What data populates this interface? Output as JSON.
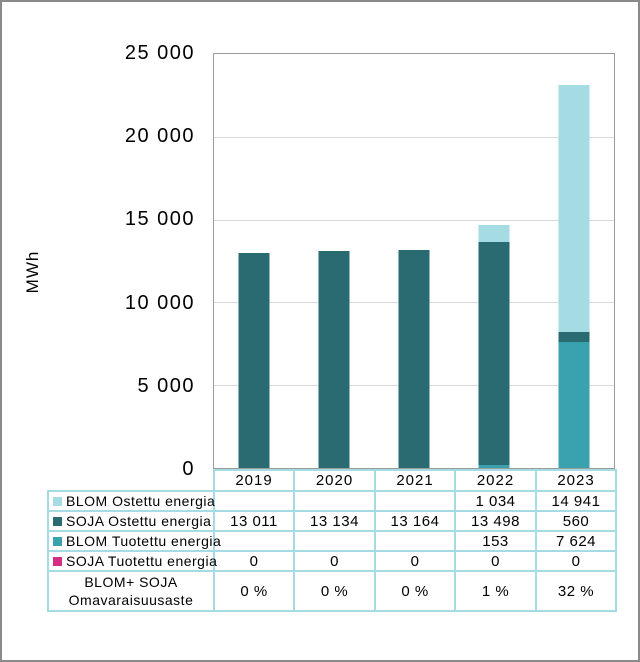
{
  "chart": {
    "y_axis_title": "MWh",
    "y_ticks": [
      "25 000",
      "20 000",
      "15 000",
      "10 000",
      "5 000",
      "0"
    ]
  },
  "chart_data": {
    "type": "bar",
    "stacked": true,
    "categories": [
      "2019",
      "2020",
      "2021",
      "2022",
      "2023"
    ],
    "series": [
      {
        "name": "BLOM Ostettu energia",
        "color": "#a5dbe3",
        "values": [
          0,
          0,
          0,
          1034,
          14941
        ]
      },
      {
        "name": "SOJA Ostettu energia",
        "color": "#2a6b72",
        "values": [
          13011,
          13134,
          13164,
          13498,
          560
        ]
      },
      {
        "name": "BLOM Tuotettu energia",
        "color": "#3aa2ae",
        "values": [
          0,
          0,
          0,
          153,
          7624
        ]
      },
      {
        "name": "SOJA Tuotettu energia",
        "color": "#d62d84",
        "values": [
          0,
          0,
          0,
          0,
          0
        ]
      }
    ],
    "stack_order_bottom_to_top": [
      "SOJA Tuotettu energia",
      "BLOM Tuotettu energia",
      "SOJA Ostettu energia",
      "BLOM Ostettu energia"
    ],
    "title": "",
    "xlabel": "",
    "ylabel": "MWh",
    "ylim": [
      0,
      25000
    ],
    "y_tick_interval": 5000,
    "grid": true,
    "legend_position": "table-below-chart"
  },
  "table": {
    "columns": [
      "2019",
      "2020",
      "2021",
      "2022",
      "2023"
    ],
    "rows": [
      {
        "label": "BLOM Ostettu energia",
        "swatch": "#a5dbe3",
        "values": [
          "",
          "",
          "",
          "1 034",
          "14 941"
        ]
      },
      {
        "label": "SOJA Ostettu energia",
        "swatch": "#2a6b72",
        "values": [
          "13 011",
          "13 134",
          "13 164",
          "13 498",
          "560"
        ]
      },
      {
        "label": "BLOM Tuotettu energia",
        "swatch": "#3aa2ae",
        "values": [
          "",
          "",
          "",
          "153",
          "7 624"
        ]
      },
      {
        "label": "SOJA Tuotettu energia",
        "swatch": "#d62d84",
        "values": [
          "0",
          "0",
          "0",
          "0",
          "0"
        ]
      }
    ],
    "pct_row": {
      "label_line1": "BLOM+ SOJA",
      "label_line2": "Omavaraisuusaste",
      "values": [
        "0 %",
        "0 %",
        "0 %",
        "1 %",
        "32 %"
      ]
    }
  },
  "colors": {
    "table_border": "#a5dce4",
    "plot_border": "#9b9b9b",
    "gridline": "#d9d9d9"
  }
}
